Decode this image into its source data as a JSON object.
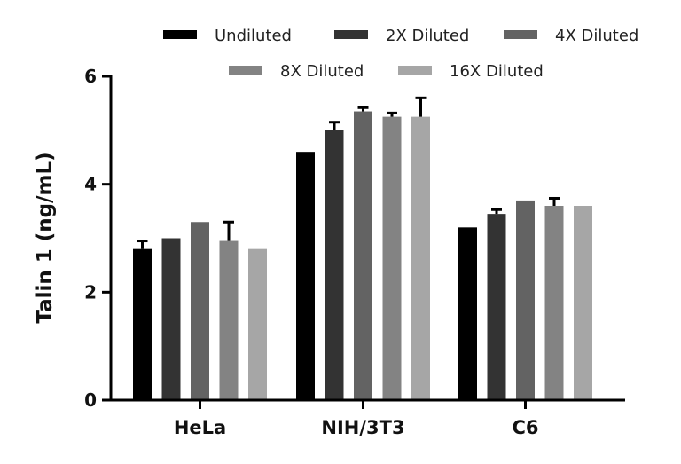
{
  "chart_data": {
    "type": "bar",
    "ylabel": "Talin 1 (ng/mL)",
    "ylim": [
      0,
      6
    ],
    "yticks": [
      0,
      2,
      4,
      6
    ],
    "categories": [
      "HeLa",
      "NIH/3T3",
      "C6"
    ],
    "legend_position": "top",
    "series": [
      {
        "name": "Undiluted",
        "color": "#000000",
        "values": [
          2.8,
          4.6,
          3.2
        ],
        "errors": [
          0.15,
          null,
          null
        ]
      },
      {
        "name": "2X Diluted",
        "color": "#333333",
        "values": [
          3.0,
          5.0,
          3.45
        ],
        "errors": [
          null,
          0.15,
          0.08
        ]
      },
      {
        "name": "4X Diluted",
        "color": "#636363",
        "values": [
          3.3,
          5.35,
          3.7
        ],
        "errors": [
          null,
          0.07,
          null
        ]
      },
      {
        "name": "8X Diluted",
        "color": "#838383",
        "values": [
          2.95,
          5.25,
          3.6
        ],
        "errors": [
          0.35,
          0.07,
          0.14
        ]
      },
      {
        "name": "16X Diluted",
        "color": "#a6a6a6",
        "values": [
          2.8,
          5.25,
          3.6
        ],
        "errors": [
          null,
          0.35,
          null
        ]
      }
    ]
  }
}
